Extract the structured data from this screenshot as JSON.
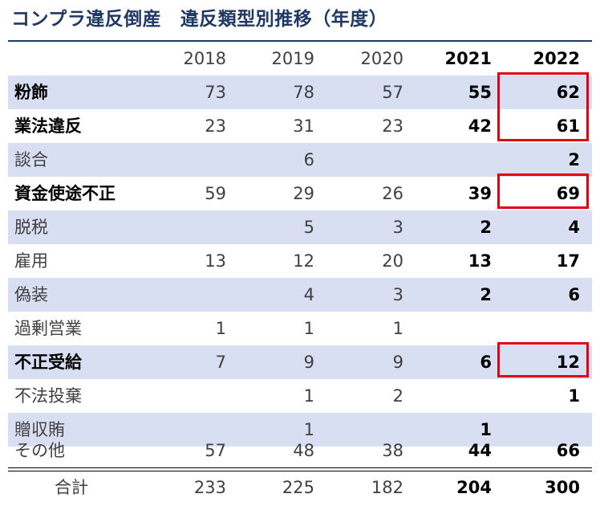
{
  "title": "コンプラ違反倒産　違反類型別推移（年度）",
  "header": {
    "label": "",
    "years": [
      "2018",
      "2019",
      "2020",
      "2021",
      "2022"
    ]
  },
  "rows": [
    {
      "label": "粉飾",
      "values": [
        "73",
        "78",
        "57",
        "55",
        "62"
      ]
    },
    {
      "label": "業法違反",
      "values": [
        "23",
        "31",
        "23",
        "42",
        "61"
      ]
    },
    {
      "label": "談合",
      "values": [
        "",
        "6",
        "",
        "",
        "2"
      ]
    },
    {
      "label": "資金使途不正",
      "values": [
        "59",
        "29",
        "26",
        "39",
        "69"
      ]
    },
    {
      "label": "脱税",
      "values": [
        "",
        "5",
        "3",
        "2",
        "4"
      ]
    },
    {
      "label": "雇用",
      "values": [
        "13",
        "12",
        "20",
        "13",
        "17"
      ]
    },
    {
      "label": "偽装",
      "values": [
        "",
        "4",
        "3",
        "2",
        "6"
      ]
    },
    {
      "label": "過剰営業",
      "values": [
        "1",
        "1",
        "1",
        "",
        ""
      ]
    },
    {
      "label": "不正受給",
      "values": [
        "7",
        "9",
        "9",
        "6",
        "12"
      ]
    },
    {
      "label": "不法投棄",
      "values": [
        "",
        "1",
        "2",
        "",
        "1"
      ]
    },
    {
      "label": "贈収賄",
      "values": [
        "",
        "1",
        "",
        "1",
        ""
      ]
    },
    {
      "label": "その他",
      "values": [
        "57",
        "48",
        "38",
        "44",
        "66"
      ]
    }
  ],
  "total": {
    "label": "合計",
    "values": [
      "233",
      "225",
      "182",
      "204",
      "300"
    ]
  },
  "colors": {
    "title": "#1f3864",
    "shade": "#d9dff2",
    "highlight": "#e0000f"
  }
}
